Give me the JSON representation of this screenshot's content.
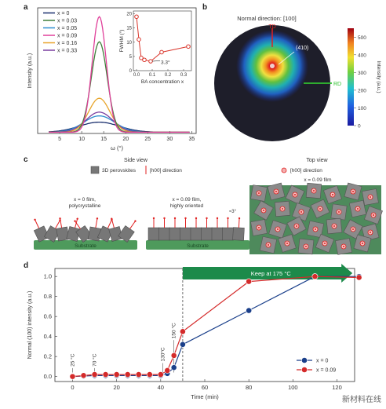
{
  "panel_labels": {
    "a": "a",
    "b": "b",
    "c": "c",
    "d": "d"
  },
  "chart_data": [
    {
      "id": "a-main",
      "type": "line",
      "xlabel": "ω (°)",
      "ylabel": "Intensity (a.u.)",
      "xlim": [
        0,
        36
      ],
      "x_ticks": [
        5,
        10,
        15,
        20,
        25,
        30,
        35
      ],
      "legend_position": "top-left",
      "series": [
        {
          "name": "x = 0",
          "color": "#1a2f6e",
          "center": 14,
          "peak": 0.08,
          "width": 4.5
        },
        {
          "name": "x = 0.03",
          "color": "#3f7f3a",
          "center": 14,
          "peak": 0.72,
          "width": 1.8
        },
        {
          "name": "x = 0.05",
          "color": "#2e8fd0",
          "center": 14,
          "peak": 0.13,
          "width": 3.5
        },
        {
          "name": "x = 0.09",
          "color": "#e0409a",
          "center": 14,
          "peak": 0.92,
          "width": 1.6
        },
        {
          "name": "x = 0.16",
          "color": "#e8a52c",
          "center": 14,
          "peak": 0.27,
          "width": 2.4
        },
        {
          "name": "x = 0.33",
          "color": "#7a3fa0",
          "center": 14,
          "peak": 0.16,
          "width": 3.0
        }
      ]
    },
    {
      "id": "a-inset",
      "type": "line",
      "xlabel": "BA concentration x",
      "ylabel": "FWHM (°)",
      "xlim": [
        -0.02,
        0.35
      ],
      "ylim": [
        0,
        21
      ],
      "x_ticks": [
        0.0,
        0.1,
        0.2,
        0.3
      ],
      "x_tick_labels": [
        "0.0",
        "0.1",
        "0.2",
        "0.3"
      ],
      "y_ticks": [
        0,
        5,
        10,
        15,
        20
      ],
      "x": [
        0,
        0.015,
        0.03,
        0.05,
        0.09,
        0.16,
        0.33
      ],
      "values": [
        19,
        11,
        4.5,
        3.8,
        3.3,
        6.5,
        8.5
      ],
      "annotation": "3.3°",
      "color": "#d9352b"
    },
    {
      "id": "d",
      "type": "line",
      "xlabel": "Time (min)",
      "ylabel": "Normal (100) intensity (a.u.)",
      "xlim": [
        -8,
        128
      ],
      "ylim": [
        -0.05,
        1.08
      ],
      "x_ticks": [
        0,
        20,
        40,
        60,
        80,
        100,
        120
      ],
      "y_ticks": [
        0.0,
        0.2,
        0.4,
        0.6,
        0.8,
        1.0
      ],
      "y_tick_labels": [
        "0.0",
        "0.2",
        "0.4",
        "0.6",
        "0.8",
        "1.0"
      ],
      "legend_position": "bottom-right",
      "series": [
        {
          "name": "x = 0",
          "color": "#1a3f8a",
          "x": [
            0,
            5,
            10,
            15,
            20,
            25,
            30,
            35,
            40,
            43,
            46,
            50,
            80,
            110,
            130
          ],
          "values": [
            0.0,
            0.005,
            0.01,
            0.01,
            0.01,
            0.01,
            0.01,
            0.01,
            0.01,
            0.03,
            0.09,
            0.32,
            0.66,
            1.0,
            1.0
          ]
        },
        {
          "name": "x = 0.09",
          "color": "#d42a2a",
          "x": [
            0,
            5,
            10,
            15,
            20,
            25,
            30,
            35,
            40,
            43,
            46,
            50,
            80,
            110,
            130
          ],
          "values": [
            0.0,
            0.01,
            0.02,
            0.02,
            0.02,
            0.02,
            0.02,
            0.02,
            0.02,
            0.06,
            0.21,
            0.45,
            0.95,
            1.0,
            0.99
          ]
        }
      ],
      "annotations": [
        {
          "text": "25 °C",
          "x": 0,
          "y": 0.1
        },
        {
          "text": "70 °C",
          "x": 10,
          "y": 0.1
        },
        {
          "text": "130°C",
          "x": 41,
          "y": 0.15
        },
        {
          "text": "150 °C",
          "x": 46,
          "y": 0.38
        }
      ],
      "arrow_label": "Keep at 175 °C",
      "dashed_line_x": 50
    }
  ],
  "panel_b": {
    "title": "Normal direction: [100]",
    "td_label": "TD",
    "rd_label": "RD",
    "pole_label": "(410)",
    "colorbar_label": "Intensity (a.u.)",
    "colorbar_ticks": [
      "500",
      "400",
      "300",
      "200",
      "100",
      "0"
    ],
    "colorbar_values": [
      500,
      400,
      300,
      200,
      100,
      0
    ]
  },
  "panel_c": {
    "side_view": "Side view",
    "top_view": "Top view",
    "legend_perovskites": "3D perovskites",
    "legend_direction": "[h00] direction",
    "legend_top_direction": "[h00] direction",
    "film1_line1": "x = 0 film,",
    "film1_line2": "polycrystalline",
    "film2_line1": "x = 0.09 film,",
    "film2_line2": "highly oriented",
    "top_film_label": "x = 0.09 film",
    "angle_label": "≈3°",
    "substrate": "Substrate"
  },
  "watermark": "新材料在线"
}
